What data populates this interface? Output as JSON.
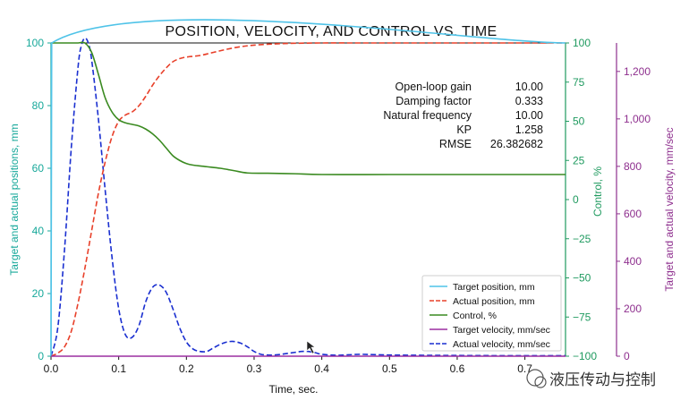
{
  "chart_data": {
    "type": "line",
    "title": "POSITION, VELOCITY, AND CONTROL VS. TIME",
    "xlabel": "Time, sec.",
    "y_left_label": "Target and actual positions, mm",
    "y_right1_label": "Control, %",
    "y_right2_label": "Target and actual velocity, mm/sec",
    "xlim": [
      0,
      0.76
    ],
    "ylim_left": [
      0,
      100
    ],
    "ylim_right1": [
      -100,
      100
    ],
    "ylim_right2": [
      0,
      1320
    ],
    "x_ticks": [
      "0.0",
      "0.1",
      "0.2",
      "0.3",
      "0.4",
      "0.5",
      "0.6",
      "0.7"
    ],
    "x_tick_values": [
      0,
      0.1,
      0.2,
      0.3,
      0.4,
      0.5,
      0.6,
      0.7
    ],
    "y_left_ticks": [
      "0",
      "20",
      "40",
      "60",
      "80",
      "100"
    ],
    "y_left_tick_values": [
      0,
      20,
      40,
      60,
      80,
      100
    ],
    "y_right1_ticks": [
      "−100",
      "−75",
      "−50",
      "−25",
      "0",
      "25",
      "50",
      "75",
      "100"
    ],
    "y_right1_tick_values": [
      -100,
      -75,
      -50,
      -25,
      0,
      25,
      50,
      75,
      100
    ],
    "y_right2_ticks": [
      "0",
      "200",
      "400",
      "600",
      "800",
      "1,000",
      "1,200"
    ],
    "y_right2_tick_values": [
      0,
      200,
      400,
      600,
      800,
      1000,
      1200
    ],
    "grid": false,
    "legend_position": "bottom-right",
    "parameters": [
      {
        "label": "Open-loop gain",
        "value": "10.00"
      },
      {
        "label": "Damping factor",
        "value": "0.333"
      },
      {
        "label": "Natural frequency",
        "value": "10.00"
      },
      {
        "label": "KP",
        "value": "1.258"
      },
      {
        "label": "RMSE",
        "value": "26.382682"
      }
    ],
    "series": [
      {
        "name": "Target position, mm",
        "axis": "left",
        "color": "#4fc3e8",
        "dash": "solid",
        "x": [
          0,
          0.001,
          0.76
        ],
        "y": [
          0,
          100,
          100
        ]
      },
      {
        "name": "Actual position, mm",
        "axis": "left",
        "color": "#e8402a",
        "dash": "dashed",
        "x": [
          0,
          0.01,
          0.02,
          0.03,
          0.04,
          0.05,
          0.06,
          0.07,
          0.08,
          0.09,
          0.1,
          0.11,
          0.12,
          0.13,
          0.14,
          0.15,
          0.16,
          0.17,
          0.18,
          0.19,
          0.2,
          0.22,
          0.24,
          0.26,
          0.28,
          0.3,
          0.33,
          0.36,
          0.4,
          0.45,
          0.5,
          0.6,
          0.7,
          0.76
        ],
        "y": [
          0,
          1,
          3,
          8,
          17,
          28,
          40,
          52,
          62,
          70,
          75,
          77,
          78,
          80,
          83,
          86.5,
          89.5,
          92,
          94,
          95,
          95.5,
          96,
          97,
          98,
          98.8,
          99.3,
          99.7,
          99.9,
          100,
          100,
          100,
          100,
          100,
          100
        ]
      },
      {
        "name": "Control, %",
        "axis": "right1",
        "color": "#3a8a20",
        "dash": "solid",
        "x": [
          0,
          0.001,
          0.01,
          0.02,
          0.03,
          0.04,
          0.05,
          0.06,
          0.07,
          0.08,
          0.09,
          0.1,
          0.11,
          0.12,
          0.13,
          0.14,
          0.15,
          0.16,
          0.17,
          0.18,
          0.19,
          0.2,
          0.21,
          0.23,
          0.25,
          0.27,
          0.29,
          0.32,
          0.36,
          0.4,
          0.5,
          0.6,
          0.76
        ],
        "y": [
          100,
          100,
          100,
          100,
          100,
          100,
          100,
          94,
          80,
          65,
          56,
          51,
          49,
          48,
          47,
          45,
          42,
          38,
          33,
          28,
          25,
          23,
          22,
          21,
          20,
          18.5,
          17,
          16.8,
          16.5,
          16,
          16,
          16,
          16
        ]
      },
      {
        "name": "Target velocity, mm/sec",
        "axis": "right2",
        "color": "#9b2fa0",
        "dash": "solid",
        "x": [
          0,
          0.76
        ],
        "y": [
          0,
          0
        ]
      },
      {
        "name": "Actual velocity, mm/sec",
        "axis": "right2",
        "color": "#1a2fd0",
        "dash": "dashed",
        "x": [
          0,
          0.01,
          0.02,
          0.03,
          0.04,
          0.045,
          0.05,
          0.055,
          0.06,
          0.07,
          0.08,
          0.09,
          0.1,
          0.11,
          0.12,
          0.13,
          0.14,
          0.15,
          0.16,
          0.17,
          0.18,
          0.19,
          0.2,
          0.21,
          0.22,
          0.23,
          0.24,
          0.25,
          0.26,
          0.27,
          0.28,
          0.29,
          0.3,
          0.31,
          0.32,
          0.33,
          0.34,
          0.35,
          0.36,
          0.37,
          0.38,
          0.39,
          0.4,
          0.42,
          0.44,
          0.46,
          0.5,
          0.6,
          0.7,
          0.76
        ],
        "y": [
          0,
          120,
          450,
          880,
          1220,
          1310,
          1340,
          1320,
          1250,
          1000,
          700,
          420,
          200,
          90,
          80,
          130,
          230,
          290,
          300,
          270,
          200,
          120,
          60,
          30,
          20,
          20,
          35,
          50,
          60,
          62,
          55,
          40,
          20,
          8,
          5,
          5,
          8,
          12,
          16,
          20,
          20,
          15,
          8,
          4,
          6,
          8,
          5,
          3,
          2,
          2
        ]
      }
    ]
  },
  "watermark": {
    "text": "液压传动与控制"
  }
}
